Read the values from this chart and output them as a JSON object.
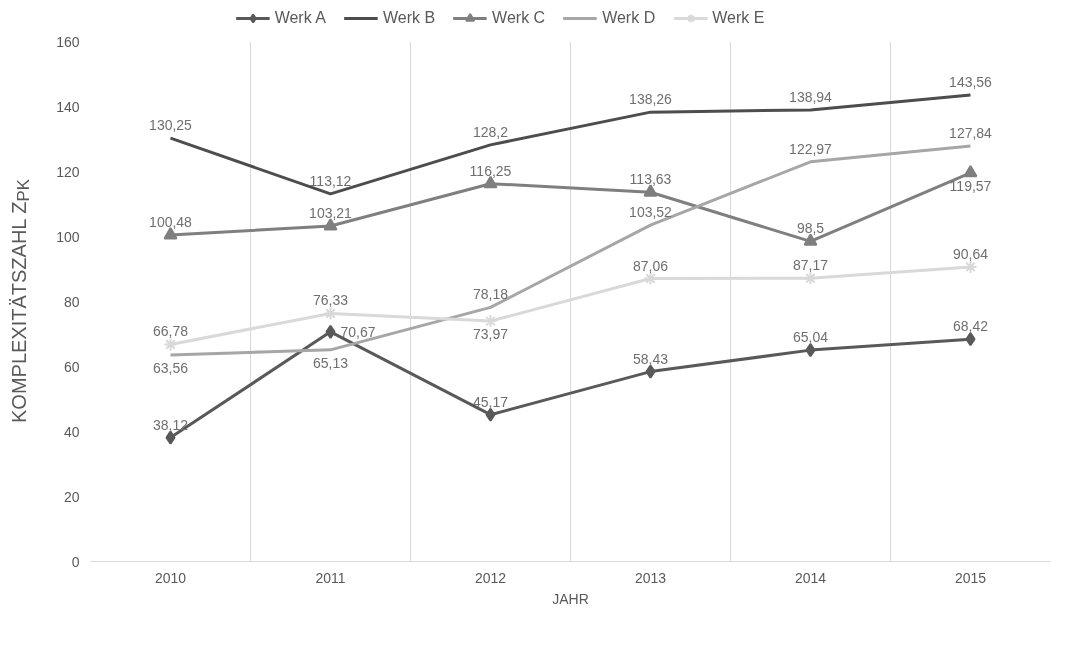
{
  "chart_data": {
    "type": "line",
    "xlabel": "JAHR",
    "ylabel": "KOMPLEXITÄTSZAHL Z$_{PK}$",
    "categories": [
      "2010",
      "2011",
      "2012",
      "2013",
      "2014",
      "2015"
    ],
    "ylim": [
      0,
      160
    ],
    "yticks": [
      0,
      20,
      40,
      60,
      80,
      100,
      120,
      140,
      160
    ],
    "grid": "x",
    "legend": "top",
    "series": [
      {
        "name": "Werk A",
        "color": "#595959",
        "marker": "diamond",
        "values": [
          38.12,
          70.67,
          45.17,
          58.43,
          65.04,
          68.42
        ],
        "value_labels": [
          "38,12",
          "70,67",
          "45,17",
          "58,43",
          "65,04",
          "68,42"
        ]
      },
      {
        "name": "Werk B",
        "color": "#4d4d4d",
        "marker": "none",
        "values": [
          130.25,
          113.12,
          128.2,
          138.26,
          138.94,
          143.56
        ],
        "value_labels": [
          "130,25",
          "113,12",
          "128,2",
          "138,26",
          "138,94",
          "143,56"
        ]
      },
      {
        "name": "Werk C",
        "color": "#7f7f7f",
        "marker": "triangle",
        "values": [
          100.48,
          103.21,
          116.25,
          113.63,
          98.5,
          119.57
        ],
        "value_labels": [
          "100,48",
          "103,21",
          "116,25",
          "113,63",
          "98,5",
          "119,57"
        ]
      },
      {
        "name": "Werk D",
        "color": "#a6a6a6",
        "marker": "none",
        "values": [
          63.56,
          65.13,
          78.18,
          103.52,
          122.97,
          127.84
        ],
        "value_labels": [
          "63,56",
          "65,13",
          "78,18",
          "103,52",
          "122,97",
          "127,84"
        ]
      },
      {
        "name": "Werk E",
        "color": "#d9d9d9",
        "marker": "cross",
        "values": [
          66.78,
          76.33,
          73.97,
          87.06,
          87.17,
          90.64
        ],
        "value_labels": [
          "66,78",
          "76,33",
          "73,97",
          "87,06",
          "87,17",
          "90,64"
        ]
      }
    ]
  }
}
